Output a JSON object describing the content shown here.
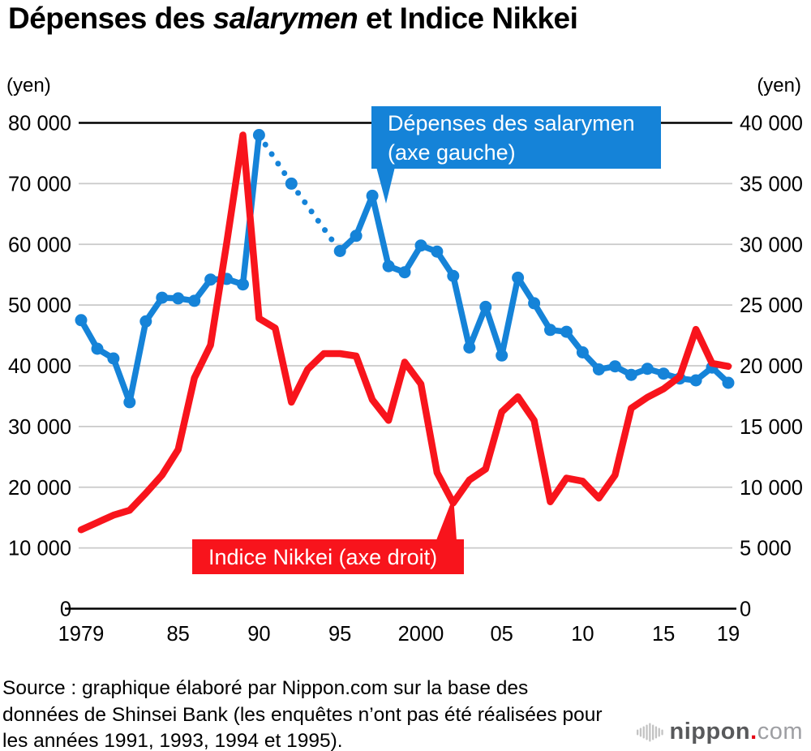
{
  "title": {
    "prefix": "Dépenses des ",
    "italic": "salarymen",
    "suffix": " et Indice Nikkei"
  },
  "axes": {
    "left_unit": "(yen)",
    "right_unit": "(yen)"
  },
  "annotations": {
    "spending": {
      "line1": "Dépenses des salarymen",
      "line2": "(axe gauche)"
    },
    "nikkei": {
      "label": "Indice Nikkei (axe droit)"
    }
  },
  "source": {
    "text": "Source : graphique élaboré par Nippon.com sur la base des données de Shinsei Bank (les enquêtes n’ont pas été réalisées pour les années 1991, 1993, 1994 et 1995)."
  },
  "logo": {
    "brand": "nippon",
    "dot": ".",
    "tld": "com"
  },
  "colors": {
    "spending_blue": "#1583d8",
    "nikkei_red": "#f8141c",
    "grid_gray": "#c9c9c9",
    "axis_black": "#000000"
  },
  "chart_data": {
    "type": "line",
    "title": "Dépenses des salarymen et Indice Nikkei",
    "x_range": [
      1979,
      2019
    ],
    "grid": true,
    "x_ticks": [
      {
        "label": "1979",
        "year": 1979
      },
      {
        "label": "85",
        "year": 1985
      },
      {
        "label": "90",
        "year": 1990
      },
      {
        "label": "95",
        "year": 1995
      },
      {
        "label": "2000",
        "year": 2000
      },
      {
        "label": "05",
        "year": 2005
      },
      {
        "label": "10",
        "year": 2010
      },
      {
        "label": "15",
        "year": 2015
      },
      {
        "label": "19",
        "year": 2019
      }
    ],
    "left_axis": {
      "unit": "(yen)",
      "range": [
        0,
        80000
      ],
      "ticks": [
        {
          "label": "0",
          "value": 0
        },
        {
          "label": "10 000",
          "value": 10000
        },
        {
          "label": "20 000",
          "value": 20000
        },
        {
          "label": "30 000",
          "value": 30000
        },
        {
          "label": "40 000",
          "value": 40000
        },
        {
          "label": "50 000",
          "value": 50000
        },
        {
          "label": "60 000",
          "value": 60000
        },
        {
          "label": "70 000",
          "value": 70000
        },
        {
          "label": "80 000",
          "value": 80000
        }
      ]
    },
    "right_axis": {
      "unit": "(yen)",
      "range": [
        0,
        40000
      ],
      "ticks": [
        {
          "label": "0",
          "value": 0
        },
        {
          "label": "5 000",
          "value": 5000
        },
        {
          "label": "10 000",
          "value": 10000
        },
        {
          "label": "15 000",
          "value": 15000
        },
        {
          "label": "20 000",
          "value": 20000
        },
        {
          "label": "25 000",
          "value": 25000
        },
        {
          "label": "30 000",
          "value": 30000
        },
        {
          "label": "35 000",
          "value": 35000
        },
        {
          "label": "40 000",
          "value": 40000
        }
      ]
    },
    "series": [
      {
        "name": "Dépenses des salarymen (axe gauche)",
        "axis": "left",
        "color": "#1583d8",
        "markers": true,
        "dotted_between": [
          [
            1990,
            1992
          ],
          [
            1992,
            1995
          ]
        ],
        "points": [
          [
            1979,
            47500
          ],
          [
            1980,
            42800
          ],
          [
            1981,
            41200
          ],
          [
            1982,
            34000
          ],
          [
            1983,
            47300
          ],
          [
            1984,
            51200
          ],
          [
            1985,
            51100
          ],
          [
            1986,
            50700
          ],
          [
            1987,
            54200
          ],
          [
            1988,
            54300
          ],
          [
            1989,
            53400
          ],
          [
            1990,
            78000
          ],
          [
            1992,
            70000
          ],
          [
            1995,
            58900
          ],
          [
            1996,
            61400
          ],
          [
            1997,
            68000
          ],
          [
            1998,
            56400
          ],
          [
            1999,
            55400
          ],
          [
            2000,
            59800
          ],
          [
            2001,
            58800
          ],
          [
            2002,
            54800
          ],
          [
            2003,
            43000
          ],
          [
            2004,
            49700
          ],
          [
            2005,
            41700
          ],
          [
            2006,
            54500
          ],
          [
            2007,
            50300
          ],
          [
            2008,
            45900
          ],
          [
            2009,
            45600
          ],
          [
            2010,
            42200
          ],
          [
            2011,
            39400
          ],
          [
            2012,
            39900
          ],
          [
            2013,
            38500
          ],
          [
            2014,
            39500
          ],
          [
            2015,
            38700
          ],
          [
            2016,
            37900
          ],
          [
            2017,
            37600
          ],
          [
            2018,
            39700
          ],
          [
            2019,
            37200
          ]
        ]
      },
      {
        "name": "Indice Nikkei (axe droit)",
        "axis": "right",
        "color": "#f8141c",
        "markers": false,
        "points": [
          [
            1979,
            6500
          ],
          [
            1980,
            7100
          ],
          [
            1981,
            7700
          ],
          [
            1982,
            8100
          ],
          [
            1983,
            9500
          ],
          [
            1984,
            11000
          ],
          [
            1985,
            13100
          ],
          [
            1986,
            19000
          ],
          [
            1987,
            21700
          ],
          [
            1988,
            30100
          ],
          [
            1989,
            39000
          ],
          [
            1990,
            23900
          ],
          [
            1991,
            23100
          ],
          [
            1992,
            17000
          ],
          [
            1993,
            19700
          ],
          [
            1994,
            21000
          ],
          [
            1995,
            21000
          ],
          [
            1996,
            20800
          ],
          [
            1997,
            17200
          ],
          [
            1998,
            15500
          ],
          [
            1999,
            20300
          ],
          [
            2000,
            18500
          ],
          [
            2001,
            11200
          ],
          [
            2002,
            8700
          ],
          [
            2003,
            10600
          ],
          [
            2004,
            11500
          ],
          [
            2005,
            16200
          ],
          [
            2006,
            17450
          ],
          [
            2007,
            15500
          ],
          [
            2008,
            8800
          ],
          [
            2009,
            10750
          ],
          [
            2010,
            10500
          ],
          [
            2011,
            9100
          ],
          [
            2012,
            11000
          ],
          [
            2013,
            16500
          ],
          [
            2014,
            17400
          ],
          [
            2015,
            18100
          ],
          [
            2016,
            19100
          ],
          [
            2017,
            23000
          ],
          [
            2018,
            20200
          ],
          [
            2019,
            19950
          ]
        ]
      }
    ]
  }
}
